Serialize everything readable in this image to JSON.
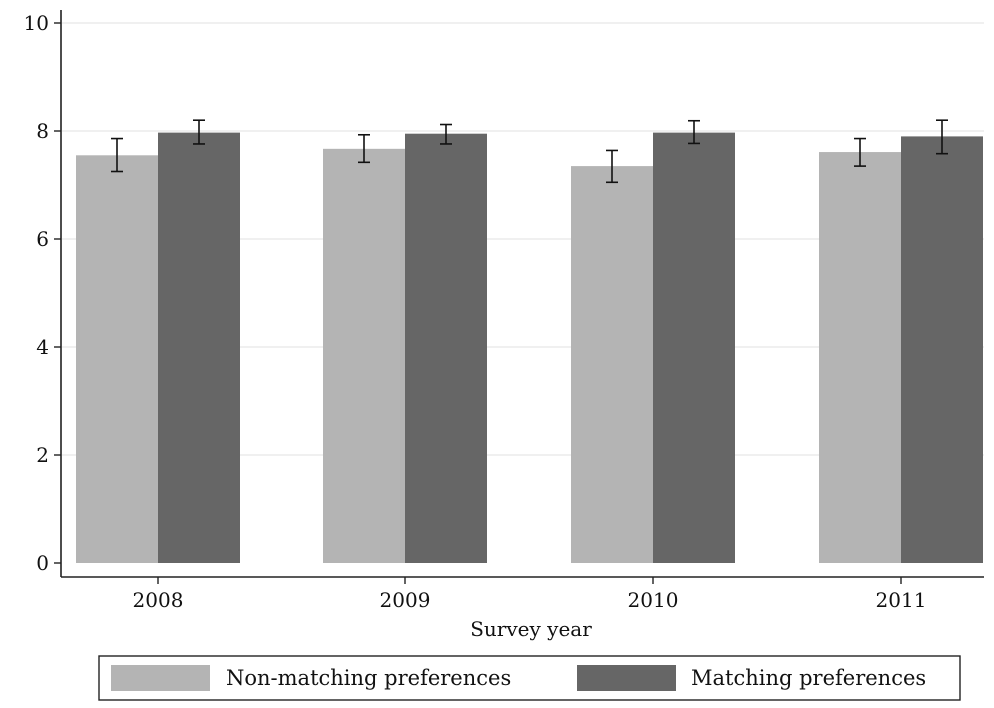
{
  "chart_data": {
    "type": "bar",
    "categories": [
      "2008",
      "2009",
      "2010",
      "2011"
    ],
    "series": [
      {
        "name": "Non-matching preferences",
        "color": "#b4b4b4",
        "values": [
          7.55,
          7.67,
          7.35,
          7.61
        ],
        "ci_low": [
          7.25,
          7.42,
          7.05,
          7.35
        ],
        "ci_high": [
          7.86,
          7.93,
          7.64,
          7.86
        ]
      },
      {
        "name": "Matching preferences",
        "color": "#666666",
        "values": [
          7.97,
          7.95,
          7.97,
          7.9
        ],
        "ci_low": [
          7.76,
          7.76,
          7.77,
          7.58
        ],
        "ci_high": [
          8.2,
          8.12,
          8.19,
          8.2
        ]
      }
    ],
    "xlabel": "Survey year",
    "ylabel": "",
    "ylim": [
      0,
      10
    ],
    "yticks": [
      "0",
      "2",
      "4",
      "6",
      "8",
      "10"
    ],
    "grid": true,
    "legend_position": "bottom"
  }
}
